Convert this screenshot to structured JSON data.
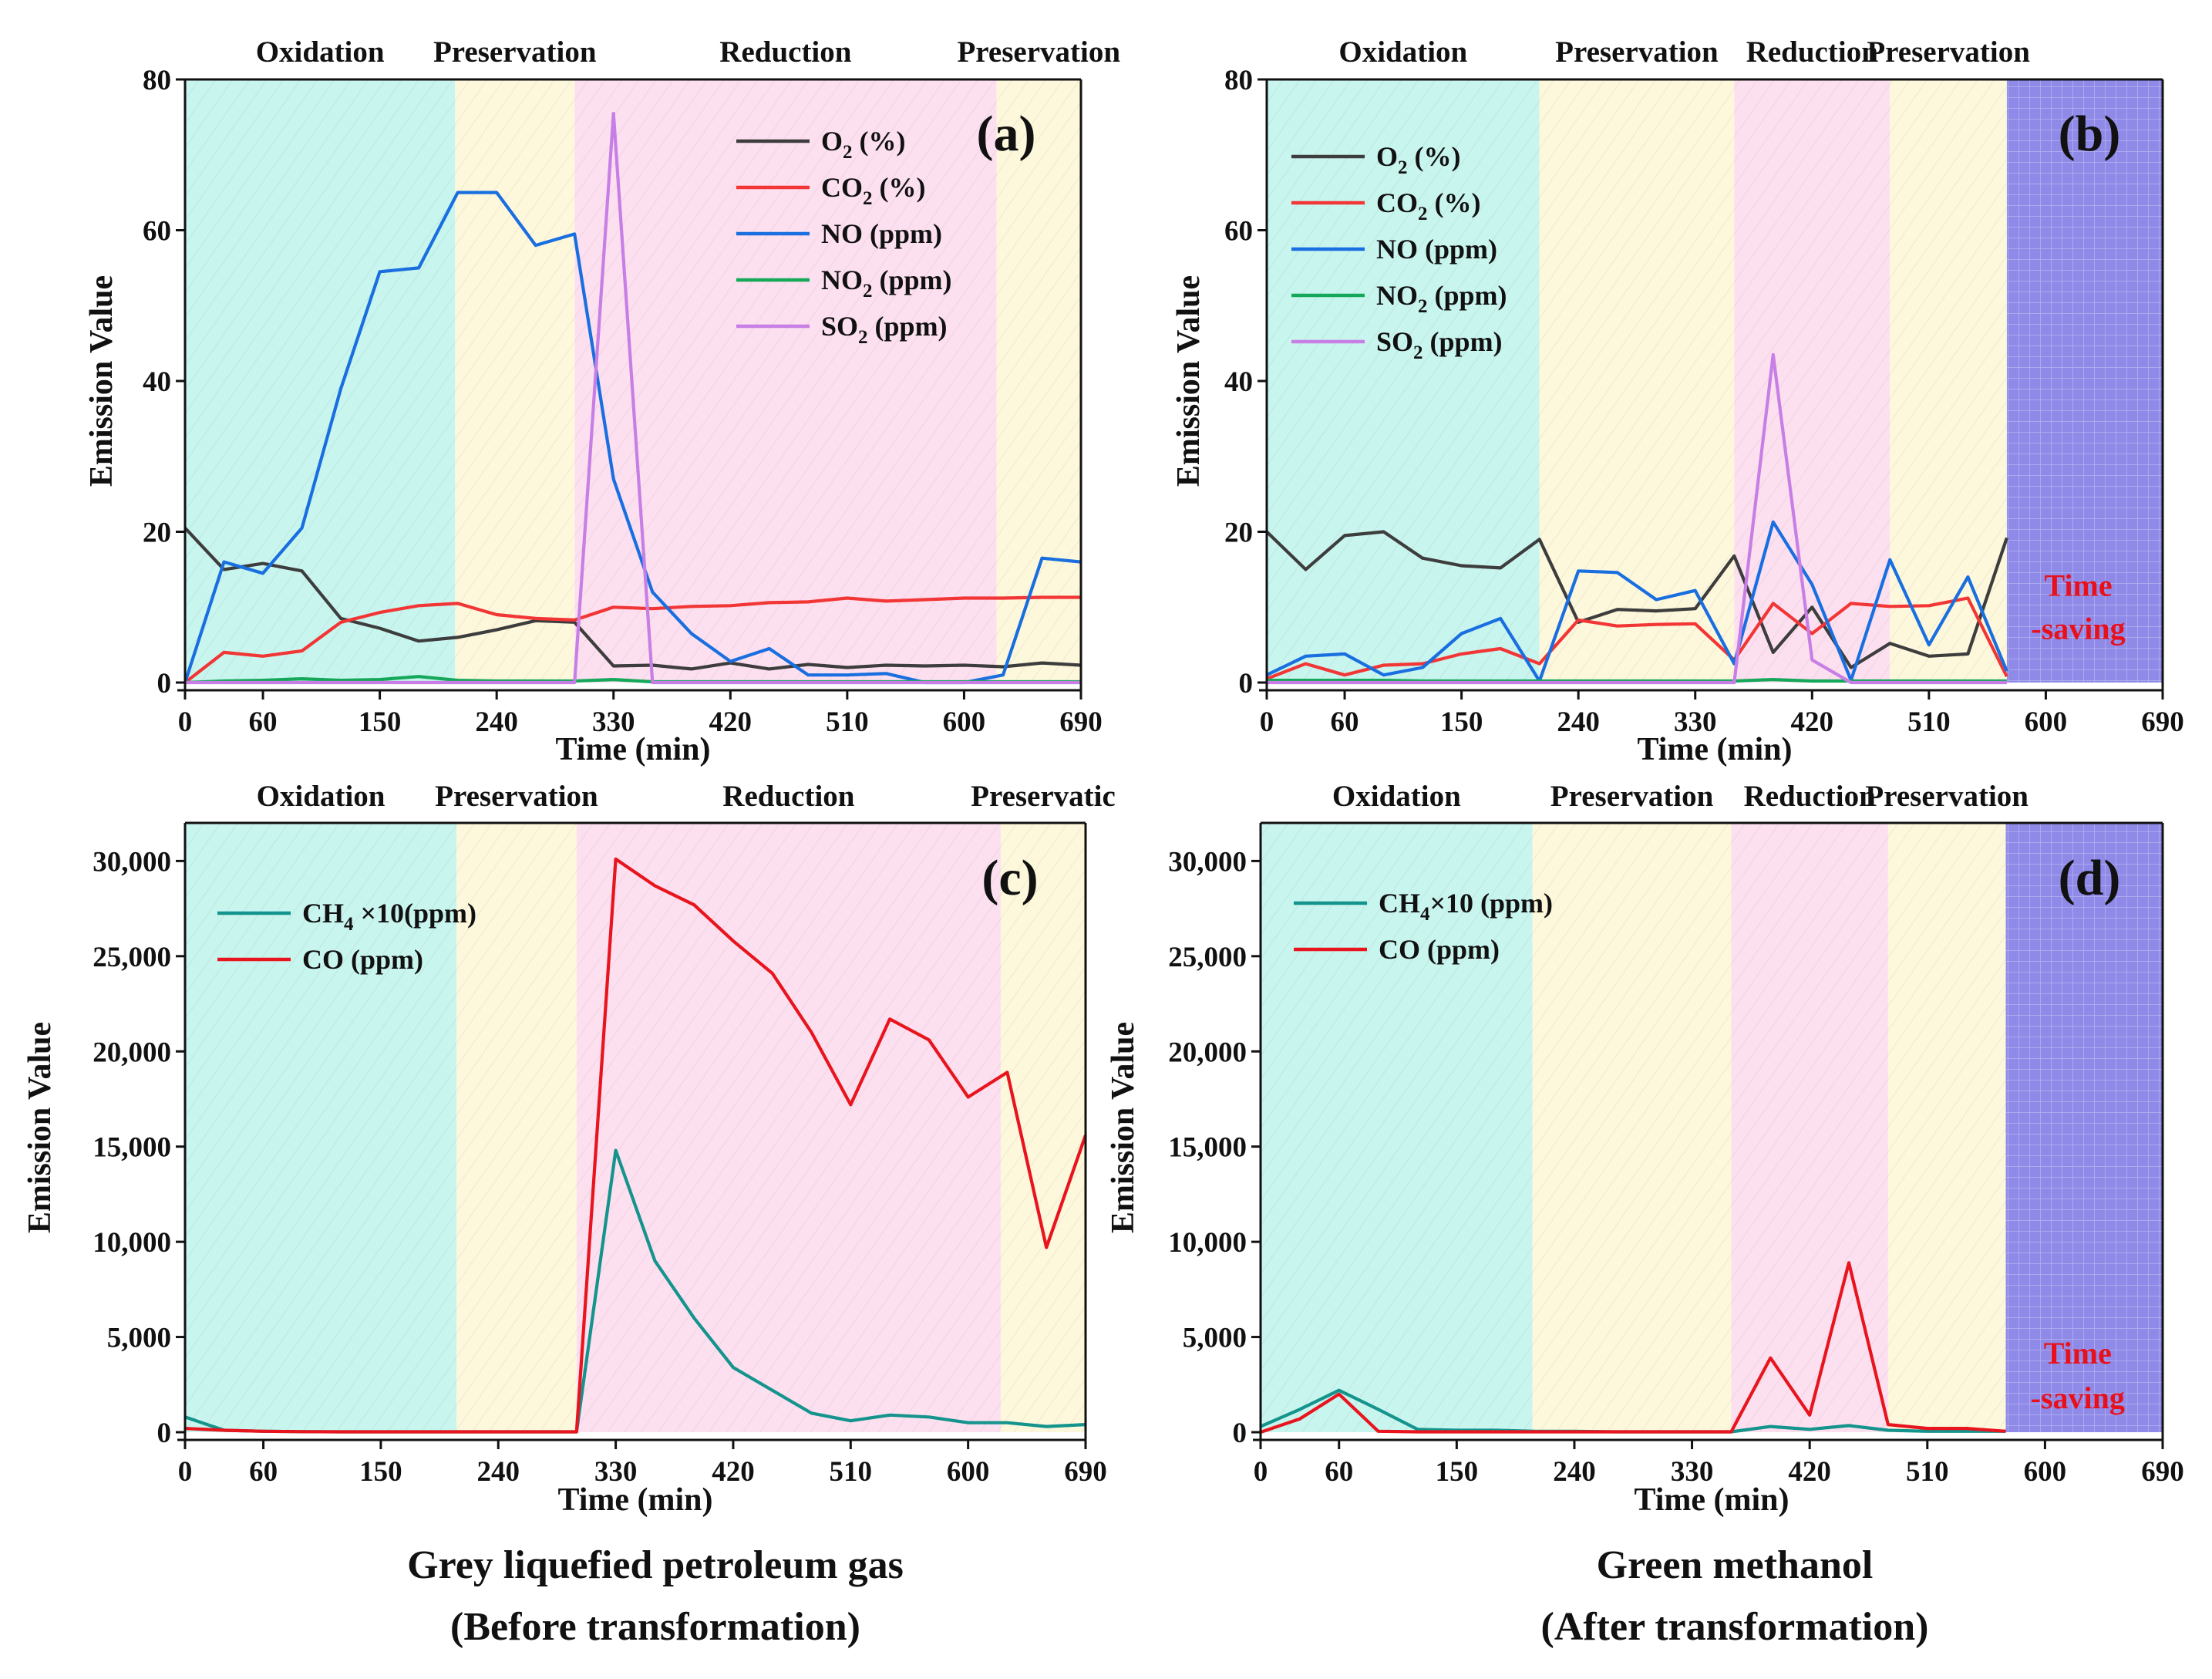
{
  "colors": {
    "oxidation": "#c9f5ef",
    "preservation": "#fdf8dc",
    "reduction": "#fde0f0",
    "time_saving": "#8f8ae8",
    "axis": "#111111",
    "time_saving_text": "#e8111b"
  },
  "chart_data": [
    {
      "id": "a",
      "type": "line",
      "panel_label": "(a)",
      "xlabel": "Time (min)",
      "ylabel": "Emission Value",
      "xlim": [
        0,
        690
      ],
      "ylim": [
        0,
        80
      ],
      "xticks": [
        "0",
        "60",
        "150",
        "240",
        "330",
        "420",
        "510",
        "600",
        "690"
      ],
      "xtick_values": [
        0,
        60,
        150,
        240,
        330,
        420,
        510,
        600,
        690
      ],
      "yticks": [
        "0",
        "20",
        "40",
        "60",
        "80"
      ],
      "ytick_values": [
        0,
        20,
        40,
        60,
        80
      ],
      "legend_position": "top-right",
      "phases": [
        {
          "name": "Oxidation",
          "start": 0,
          "end": 208,
          "type": "oxidation"
        },
        {
          "name": "Preservation",
          "start": 208,
          "end": 300,
          "type": "preservation"
        },
        {
          "name": "Reduction",
          "start": 300,
          "end": 625,
          "type": "reduction"
        },
        {
          "name": "Preservation",
          "start": 625,
          "end": 690,
          "type": "preservation"
        }
      ],
      "series": [
        {
          "name": "O2 (%)",
          "label": "O",
          "sub": "2",
          "unit": " (%)",
          "color": "#3d3d3d",
          "x": [
            0,
            30,
            60,
            90,
            120,
            150,
            180,
            210,
            240,
            270,
            300,
            330,
            360,
            390,
            420,
            450,
            480,
            510,
            540,
            570,
            600,
            630,
            660,
            690
          ],
          "values": [
            20.5,
            15,
            15.8,
            14.8,
            8.5,
            7.2,
            5.5,
            6,
            7,
            8.2,
            8,
            2.2,
            2.3,
            1.8,
            2.6,
            1.8,
            2.4,
            2,
            2.3,
            2.2,
            2.3,
            2.1,
            2.6,
            2.3
          ]
        },
        {
          "name": "CO2 (%)",
          "label": "CO",
          "sub": "2",
          "unit": " (%)",
          "color": "#f23535",
          "x": [
            0,
            30,
            60,
            90,
            120,
            150,
            180,
            210,
            240,
            270,
            300,
            330,
            360,
            390,
            420,
            450,
            480,
            510,
            540,
            570,
            600,
            630,
            660,
            690
          ],
          "values": [
            0,
            4,
            3.5,
            4.2,
            8,
            9.3,
            10.2,
            10.5,
            9,
            8.5,
            8.3,
            10,
            9.8,
            10.1,
            10.2,
            10.6,
            10.7,
            11.2,
            10.8,
            11,
            11.2,
            11.2,
            11.3,
            11.3
          ]
        },
        {
          "name": "NO (ppm)",
          "label": "NO",
          "sub": "",
          "unit": " (ppm)",
          "color": "#1a6fe0",
          "x": [
            0,
            30,
            60,
            90,
            120,
            150,
            180,
            210,
            240,
            270,
            300,
            330,
            360,
            390,
            420,
            450,
            480,
            510,
            540,
            570,
            600,
            630,
            660,
            690
          ],
          "values": [
            0,
            16,
            14.5,
            20.5,
            39,
            54.5,
            55,
            65,
            65,
            58,
            59.5,
            27,
            12,
            6.5,
            2.8,
            4.5,
            1,
            1,
            1.2,
            0,
            0,
            1,
            16.5,
            16
          ]
        },
        {
          "name": "NO2 (ppm)",
          "label": "NO",
          "sub": "2",
          "unit": " (ppm)",
          "color": "#16a85a",
          "x": [
            0,
            30,
            60,
            90,
            120,
            150,
            180,
            210,
            240,
            270,
            300,
            330,
            360,
            390,
            420,
            450,
            480,
            510,
            540,
            570,
            600,
            630,
            660,
            690
          ],
          "values": [
            0,
            0.2,
            0.3,
            0.5,
            0.3,
            0.4,
            0.8,
            0.3,
            0.2,
            0.2,
            0.2,
            0.4,
            0.1,
            0.1,
            0.1,
            0.1,
            0.1,
            0.1,
            0.1,
            0.1,
            0.1,
            0.1,
            0.1,
            0.1
          ]
        },
        {
          "name": "SO2 (ppm)",
          "label": "SO",
          "sub": "2",
          "unit": " (ppm)",
          "color": "#c77fe6",
          "x": [
            0,
            300,
            330,
            360,
            690
          ],
          "values": [
            0,
            0,
            75.5,
            0,
            0
          ]
        }
      ]
    },
    {
      "id": "b",
      "type": "line",
      "panel_label": "(b)",
      "xlabel": "Time (min)",
      "ylabel": "Emission Value",
      "xlim": [
        0,
        690
      ],
      "ylim": [
        0,
        80
      ],
      "xticks": [
        "0",
        "60",
        "150",
        "240",
        "330",
        "420",
        "510",
        "600",
        "690"
      ],
      "xtick_values": [
        0,
        60,
        150,
        240,
        330,
        420,
        510,
        600,
        690
      ],
      "yticks": [
        "0",
        "20",
        "40",
        "60",
        "80"
      ],
      "ytick_values": [
        0,
        20,
        40,
        60,
        80
      ],
      "legend_position": "top-left",
      "phases": [
        {
          "name": "Oxidation",
          "start": 0,
          "end": 210,
          "type": "oxidation"
        },
        {
          "name": "Preservation",
          "start": 210,
          "end": 360,
          "type": "preservation"
        },
        {
          "name": "Reduction",
          "start": 360,
          "end": 480,
          "type": "reduction"
        },
        {
          "name": "Preservation",
          "start": 480,
          "end": 570,
          "type": "preservation"
        },
        {
          "name": "",
          "start": 570,
          "end": 690,
          "type": "time_saving"
        }
      ],
      "annotation": {
        "line1": "Time",
        "line2": "-saving",
        "x": 625,
        "y1": 11.5,
        "y2": 5.8
      },
      "series": [
        {
          "name": "O2 (%)",
          "label": "O",
          "sub": "2",
          "unit": " (%)",
          "color": "#3d3d3d",
          "x": [
            0,
            30,
            60,
            90,
            120,
            150,
            180,
            210,
            240,
            270,
            300,
            330,
            360,
            390,
            420,
            450,
            480,
            510,
            540,
            570
          ],
          "values": [
            20,
            15,
            19.5,
            20,
            16.5,
            15.5,
            15.2,
            19,
            8,
            9.7,
            9.5,
            9.8,
            16.8,
            4,
            10,
            2,
            5.2,
            3.5,
            3.8,
            19.2
          ]
        },
        {
          "name": "CO2 (%)",
          "label": "CO",
          "sub": "2",
          "unit": " (%)",
          "color": "#f23535",
          "x": [
            0,
            30,
            60,
            90,
            120,
            150,
            180,
            210,
            240,
            270,
            300,
            330,
            360,
            390,
            420,
            450,
            480,
            510,
            540,
            570
          ],
          "values": [
            0.5,
            2.5,
            1,
            2.3,
            2.5,
            3.8,
            4.5,
            2.5,
            8.3,
            7.5,
            7.7,
            7.8,
            3,
            10.5,
            6.5,
            10.5,
            10.1,
            10.2,
            11.2,
            0.8
          ]
        },
        {
          "name": "NO (ppm)",
          "label": "NO",
          "sub": "",
          "unit": " (ppm)",
          "color": "#1a6fe0",
          "x": [
            0,
            30,
            60,
            90,
            120,
            150,
            180,
            210,
            240,
            270,
            300,
            330,
            360,
            390,
            420,
            450,
            480,
            510,
            540,
            570
          ],
          "values": [
            1,
            3.5,
            3.8,
            1,
            2,
            6.5,
            8.5,
            0.2,
            14.8,
            14.6,
            11,
            12.2,
            2.5,
            21.3,
            13,
            0.3,
            16.3,
            5,
            14,
            1.5
          ]
        },
        {
          "name": "NO2 (ppm)",
          "label": "NO",
          "sub": "2",
          "unit": " (ppm)",
          "color": "#16a85a",
          "x": [
            0,
            30,
            60,
            90,
            120,
            150,
            180,
            210,
            240,
            270,
            300,
            330,
            360,
            390,
            420,
            450,
            480,
            510,
            540,
            570
          ],
          "values": [
            0.3,
            0.3,
            0.3,
            0.3,
            0.2,
            0.2,
            0.2,
            0.2,
            0.2,
            0.2,
            0.2,
            0.2,
            0.2,
            0.4,
            0.2,
            0.2,
            0.2,
            0.2,
            0.2,
            0.2
          ]
        },
        {
          "name": "SO2 (ppm)",
          "label": "SO",
          "sub": "2",
          "unit": " (ppm)",
          "color": "#c77fe6",
          "x": [
            0,
            360,
            390,
            420,
            450,
            570
          ],
          "values": [
            0,
            0,
            43.5,
            3,
            0,
            0
          ]
        }
      ]
    },
    {
      "id": "c",
      "type": "line",
      "panel_label": "(c)",
      "xlabel": "Time (min)",
      "ylabel": "Emission Value",
      "xlim": [
        0,
        690
      ],
      "ylim": [
        0,
        32000
      ],
      "xticks": [
        "0",
        "60",
        "150",
        "240",
        "330",
        "420",
        "510",
        "600",
        "690"
      ],
      "xtick_values": [
        0,
        60,
        150,
        240,
        330,
        420,
        510,
        600,
        690
      ],
      "yticks": [
        "0",
        "5,000",
        "10,000",
        "15,000",
        "20,000",
        "25,000",
        "30,000"
      ],
      "ytick_values": [
        0,
        5000,
        10000,
        15000,
        20000,
        25000,
        30000
      ],
      "legend_position": "top-left",
      "phases": [
        {
          "name": "Oxidation",
          "start": 0,
          "end": 208,
          "type": "oxidation"
        },
        {
          "name": "Preservation",
          "start": 208,
          "end": 300,
          "type": "preservation"
        },
        {
          "name": "Reduction",
          "start": 300,
          "end": 625,
          "type": "reduction"
        },
        {
          "name": "Preservatic",
          "start": 625,
          "end": 690,
          "type": "preservation"
        }
      ],
      "series": [
        {
          "name": "CH4 ×10(ppm)",
          "label": "CH",
          "sub": "4",
          "unit": " ×10(ppm)",
          "color": "#14948c",
          "x": [
            0,
            30,
            60,
            90,
            120,
            150,
            180,
            210,
            240,
            270,
            300,
            330,
            360,
            390,
            420,
            450,
            480,
            510,
            540,
            570,
            600,
            630,
            660,
            690
          ],
          "values": [
            800,
            100,
            50,
            30,
            20,
            20,
            20,
            20,
            20,
            20,
            20,
            14800,
            9000,
            6000,
            3400,
            2200,
            1000,
            600,
            900,
            800,
            500,
            500,
            300,
            400
          ]
        },
        {
          "name": "CO (ppm)",
          "label": "CO",
          "sub": "",
          "unit": " (ppm)",
          "color": "#e8141e",
          "x": [
            0,
            30,
            60,
            90,
            120,
            150,
            180,
            210,
            240,
            270,
            300,
            330,
            360,
            390,
            420,
            450,
            480,
            510,
            540,
            570,
            600,
            630,
            660,
            690
          ],
          "values": [
            200,
            100,
            50,
            30,
            20,
            20,
            20,
            20,
            20,
            20,
            20,
            30100,
            28700,
            27700,
            25800,
            24100,
            21000,
            17200,
            21700,
            20600,
            17600,
            18900,
            9700,
            15600
          ]
        }
      ]
    },
    {
      "id": "d",
      "type": "line",
      "panel_label": "(d)",
      "xlabel": "Time (min)",
      "ylabel": "Emission Value",
      "xlim": [
        0,
        690
      ],
      "ylim": [
        0,
        32000
      ],
      "xticks": [
        "0",
        "60",
        "150",
        "240",
        "330",
        "420",
        "510",
        "600",
        "690"
      ],
      "xtick_values": [
        0,
        60,
        150,
        240,
        330,
        420,
        510,
        600,
        690
      ],
      "yticks": [
        "0",
        "5,000",
        "10,000",
        "15,000",
        "20,000",
        "25,000",
        "30,000"
      ],
      "ytick_values": [
        0,
        5000,
        10000,
        15000,
        20000,
        25000,
        30000
      ],
      "legend_position": "top-left",
      "phases": [
        {
          "name": "Oxidation",
          "start": 0,
          "end": 208,
          "type": "oxidation"
        },
        {
          "name": "Preservation",
          "start": 208,
          "end": 360,
          "type": "preservation"
        },
        {
          "name": "Reduction",
          "start": 360,
          "end": 480,
          "type": "reduction"
        },
        {
          "name": "Preservation",
          "start": 480,
          "end": 570,
          "type": "preservation"
        },
        {
          "name": "",
          "start": 570,
          "end": 690,
          "type": "time_saving"
        }
      ],
      "annotation": {
        "line1": "Time",
        "line2": "-saving",
        "x": 625,
        "y1": 3600,
        "y2": 1250
      },
      "series": [
        {
          "name": "CH4×10 (ppm)",
          "label": "CH",
          "sub": "4",
          "unit": "×10 (ppm)",
          "color": "#14948c",
          "x": [
            0,
            30,
            60,
            90,
            120,
            150,
            180,
            210,
            240,
            270,
            300,
            330,
            360,
            390,
            420,
            450,
            480,
            510,
            540,
            570
          ],
          "values": [
            300,
            1200,
            2200,
            1200,
            150,
            100,
            100,
            50,
            50,
            20,
            20,
            20,
            20,
            300,
            150,
            350,
            100,
            50,
            50,
            50
          ]
        },
        {
          "name": "CO (ppm)",
          "label": "CO",
          "sub": "",
          "unit": " (ppm)",
          "color": "#e8141e",
          "x": [
            0,
            30,
            60,
            90,
            120,
            150,
            180,
            210,
            240,
            270,
            300,
            330,
            360,
            390,
            420,
            450,
            480,
            510,
            540,
            570
          ],
          "values": [
            0,
            700,
            2000,
            50,
            20,
            20,
            20,
            20,
            20,
            20,
            20,
            20,
            20,
            3900,
            900,
            8900,
            400,
            200,
            200,
            50
          ]
        }
      ]
    }
  ],
  "captions": {
    "left_line1": "Grey liquefied petroleum gas",
    "left_line2": "(Before transformation)",
    "right_line1": "Green methanol",
    "right_line2": "(After transformation)"
  }
}
